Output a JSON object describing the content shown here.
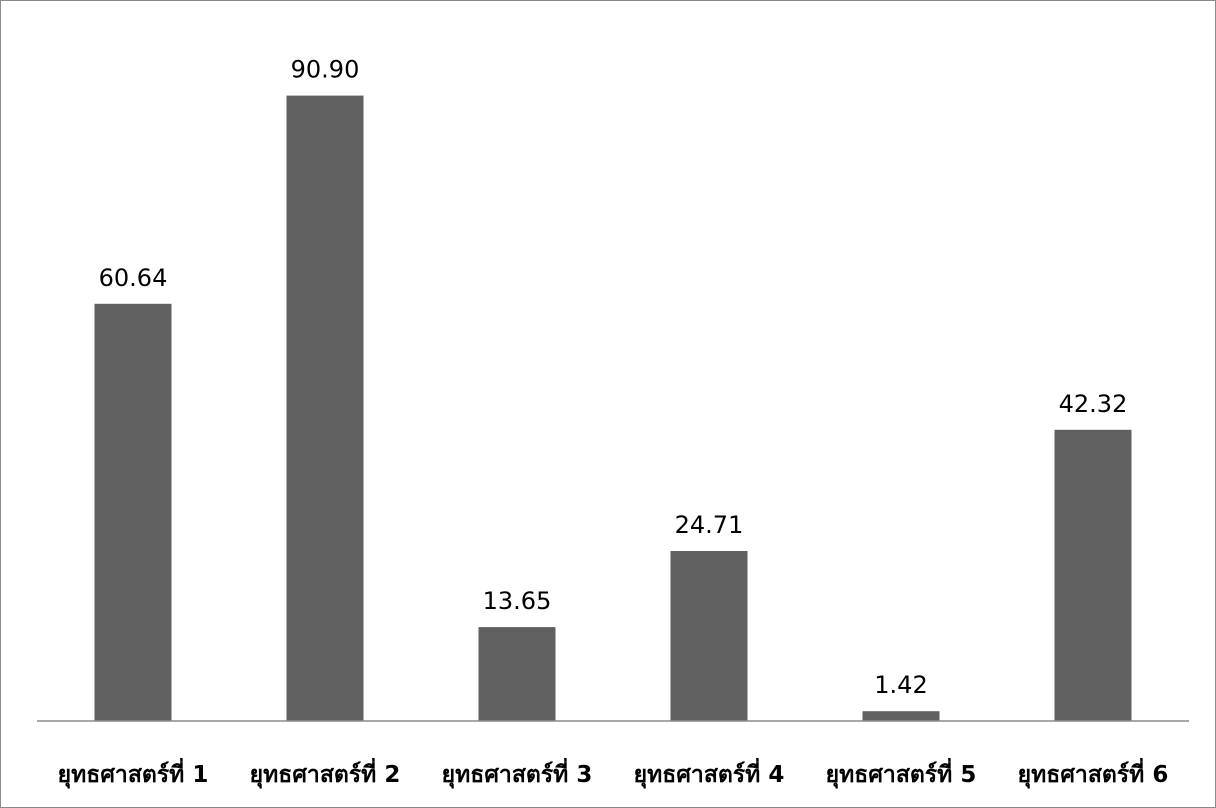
{
  "chart_data": {
    "type": "bar",
    "categories": [
      "ยุทธศาสตร์ที่ 1",
      "ยุทธศาสตร์ที่ 2",
      "ยุทธศาสตร์ที่ 3",
      "ยุทธศาสตร์ที่ 4",
      "ยุทธศาสตร์ที่ 5",
      "ยุทธศาสตร์ที่ 6"
    ],
    "values": [
      60.64,
      90.9,
      13.65,
      24.71,
      1.42,
      42.32
    ],
    "data_labels": [
      "60.64",
      "90.90",
      "13.65",
      "24.71",
      "1.42",
      "42.32"
    ],
    "title": "",
    "xlabel": "",
    "ylabel": "",
    "ylim": [
      0,
      100
    ],
    "grid": false,
    "legend": "none",
    "bar_color": "#606060",
    "axis_color": "#8c8c8c"
  }
}
